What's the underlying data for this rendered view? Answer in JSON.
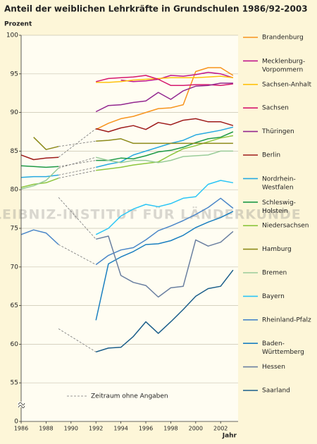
{
  "chart_data": {
    "type": "line",
    "title": "Anteil der weiblichen Lehrkräfte in Grundschulen 1986/92-2003",
    "y_label": "Prozent",
    "x_label": "Jahr",
    "watermark": "© LEIBNIZ-INSTITUT FÜR LÄNDERKUNDE",
    "gap_note": "Zeitraum ohne Angaben",
    "x": [
      1986,
      1987,
      1988,
      1989,
      1990,
      1991,
      1992,
      1993,
      1994,
      1995,
      1996,
      1997,
      1998,
      1999,
      2000,
      2001,
      2002,
      2003
    ],
    "xlim": [
      1986,
      2003.4
    ],
    "xticks": [
      1986,
      1988,
      1990,
      1992,
      1994,
      1996,
      1998,
      2000,
      2002
    ],
    "ylim": [
      50,
      100
    ],
    "yticks": [
      {
        "value": 50,
        "label": "0"
      },
      55,
      60,
      65,
      70,
      75,
      80,
      85,
      90,
      95,
      100
    ],
    "grid": true,
    "series": [
      {
        "name": "Brandenburg",
        "color": "#f7941d",
        "values": [
          null,
          null,
          null,
          null,
          null,
          null,
          87.8,
          88.6,
          89.2,
          89.5,
          90.0,
          90.5,
          90.6,
          91.0,
          95.3,
          95.8,
          95.8,
          94.8
        ]
      },
      {
        "name": "Mecklenburg-Vorpommern",
        "color": "#c0168c",
        "values": [
          null,
          null,
          null,
          null,
          null,
          null,
          null,
          null,
          94.2,
          94.0,
          94.1,
          94.3,
          94.8,
          94.7,
          94.9,
          95.2,
          95.0,
          94.5
        ]
      },
      {
        "name": "Sachsen-Anhalt",
        "color": "#ffc20e",
        "values": [
          null,
          null,
          null,
          null,
          null,
          null,
          93.9,
          93.9,
          94.0,
          94.2,
          94.3,
          94.4,
          94.5,
          94.5,
          94.5,
          94.6,
          94.7,
          94.5
        ]
      },
      {
        "name": "Sachsen",
        "color": "#d6186e",
        "values": [
          null,
          null,
          null,
          null,
          null,
          null,
          94.0,
          94.4,
          94.5,
          94.6,
          94.8,
          94.3,
          93.5,
          93.5,
          93.6,
          93.6,
          93.5,
          93.7
        ]
      },
      {
        "name": "Thüringen",
        "color": "#93278f",
        "values": [
          null,
          null,
          null,
          null,
          null,
          null,
          90.1,
          90.9,
          91.0,
          91.3,
          91.5,
          92.6,
          91.7,
          92.8,
          93.4,
          93.5,
          93.8,
          93.8
        ]
      },
      {
        "name": "Berlin",
        "color": "#9e1b1b",
        "values": [
          84.5,
          83.9,
          84.1,
          84.2,
          null,
          null,
          87.9,
          87.5,
          88.0,
          88.3,
          87.8,
          88.7,
          88.4,
          89.0,
          89.2,
          88.8,
          88.8,
          88.3
        ]
      },
      {
        "name": "Nordrhein-Westfalen",
        "color": "#27aae1",
        "values": [
          81.6,
          81.7,
          81.7,
          81.9,
          null,
          null,
          82.9,
          83.3,
          83.6,
          84.5,
          85.0,
          85.5,
          86.0,
          86.4,
          87.1,
          87.4,
          87.7,
          88.1
        ]
      },
      {
        "name": "Schleswig-Holstein",
        "color": "#1e9a47",
        "values": [
          83.1,
          83.0,
          82.9,
          83.0,
          null,
          null,
          83.8,
          83.8,
          84.1,
          84.0,
          84.4,
          84.9,
          85.1,
          85.5,
          86.1,
          86.6,
          86.8,
          87.5
        ]
      },
      {
        "name": "Niedersachsen",
        "color": "#8dc63f",
        "values": [
          80.3,
          80.7,
          80.9,
          81.5,
          null,
          null,
          82.5,
          82.7,
          82.9,
          83.2,
          83.4,
          83.6,
          84.5,
          85.3,
          85.7,
          86.2,
          86.7,
          87.0
        ]
      },
      {
        "name": "Hamburg",
        "color": "#8c8a1a",
        "values": [
          null,
          86.8,
          85.2,
          85.6,
          null,
          null,
          86.3,
          86.4,
          86.6,
          86.0,
          86.0,
          86.0,
          86.0,
          86.0,
          86.0,
          86.0,
          86.0,
          86.0
        ]
      },
      {
        "name": "Bremen",
        "color": "#99cc99",
        "values": [
          80.1,
          80.5,
          81.2,
          82.8,
          null,
          null,
          84.2,
          83.8,
          83.5,
          83.8,
          83.8,
          83.5,
          83.8,
          84.3,
          84.4,
          84.5,
          85.0,
          85.0
        ]
      },
      {
        "name": "Bayern",
        "color": "#29c5f6",
        "values": [
          null,
          null,
          null,
          null,
          null,
          null,
          74.2,
          75.0,
          76.6,
          77.5,
          78.1,
          77.8,
          78.2,
          78.9,
          79.1,
          80.7,
          81.2,
          80.9
        ]
      },
      {
        "name": "Rheinland-Pfalz",
        "color": "#4a86c8",
        "values": [
          74.2,
          74.8,
          74.4,
          72.9,
          null,
          null,
          70.3,
          71.5,
          72.2,
          72.5,
          73.5,
          74.7,
          75.3,
          76.0,
          76.8,
          77.7,
          78.9,
          77.6
        ]
      },
      {
        "name": "Baden-Württemberg",
        "color": "#1a7fc0",
        "values": [
          null,
          null,
          null,
          null,
          null,
          null,
          63.1,
          70.4,
          71.3,
          72.0,
          72.9,
          73.0,
          73.4,
          74.1,
          75.1,
          75.8,
          76.4,
          77.2
        ]
      },
      {
        "name": "Hessen",
        "color": "#6a7fa0",
        "values": [
          null,
          null,
          null,
          79.0,
          null,
          null,
          73.6,
          74.0,
          68.9,
          68.0,
          67.6,
          66.1,
          67.3,
          67.5,
          73.5,
          72.7,
          73.2,
          74.6
        ]
      },
      {
        "name": "Saarland",
        "color": "#1b5e8a",
        "values": [
          null,
          null,
          null,
          62.0,
          null,
          null,
          59.0,
          59.5,
          59.6,
          61.0,
          62.9,
          61.4,
          62.9,
          64.5,
          66.2,
          67.2,
          67.5,
          69.6
        ]
      }
    ]
  }
}
